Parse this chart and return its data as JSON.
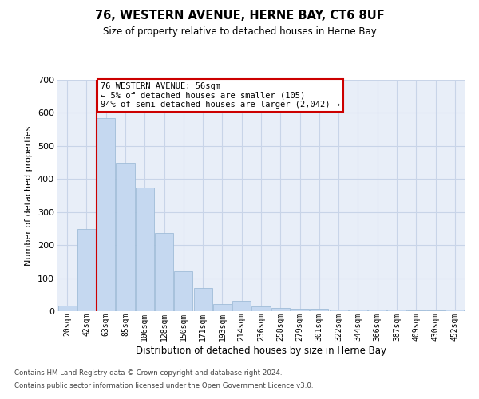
{
  "title": "76, WESTERN AVENUE, HERNE BAY, CT6 8UF",
  "subtitle": "Size of property relative to detached houses in Herne Bay",
  "xlabel": "Distribution of detached houses by size in Herne Bay",
  "ylabel": "Number of detached properties",
  "bar_labels": [
    "20sqm",
    "42sqm",
    "63sqm",
    "85sqm",
    "106sqm",
    "128sqm",
    "150sqm",
    "171sqm",
    "193sqm",
    "214sqm",
    "236sqm",
    "258sqm",
    "279sqm",
    "301sqm",
    "322sqm",
    "344sqm",
    "366sqm",
    "387sqm",
    "409sqm",
    "430sqm",
    "452sqm"
  ],
  "bar_values": [
    18,
    248,
    585,
    449,
    373,
    237,
    120,
    70,
    22,
    31,
    14,
    10,
    8,
    8,
    5,
    5,
    5,
    5,
    3,
    2,
    6
  ],
  "bar_color": "#c5d8f0",
  "bar_edge_color": "#a0bcd8",
  "grid_color": "#c8d4e8",
  "background_color": "#e8eef8",
  "vline_x_index": 2,
  "vline_color": "#cc0000",
  "annotation_text": "76 WESTERN AVENUE: 56sqm\n← 5% of detached houses are smaller (105)\n94% of semi-detached houses are larger (2,042) →",
  "annotation_box_color": "#cc0000",
  "ylim": [
    0,
    700
  ],
  "yticks": [
    0,
    100,
    200,
    300,
    400,
    500,
    600,
    700
  ],
  "footer_line1": "Contains HM Land Registry data © Crown copyright and database right 2024.",
  "footer_line2": "Contains public sector information licensed under the Open Government Licence v3.0."
}
